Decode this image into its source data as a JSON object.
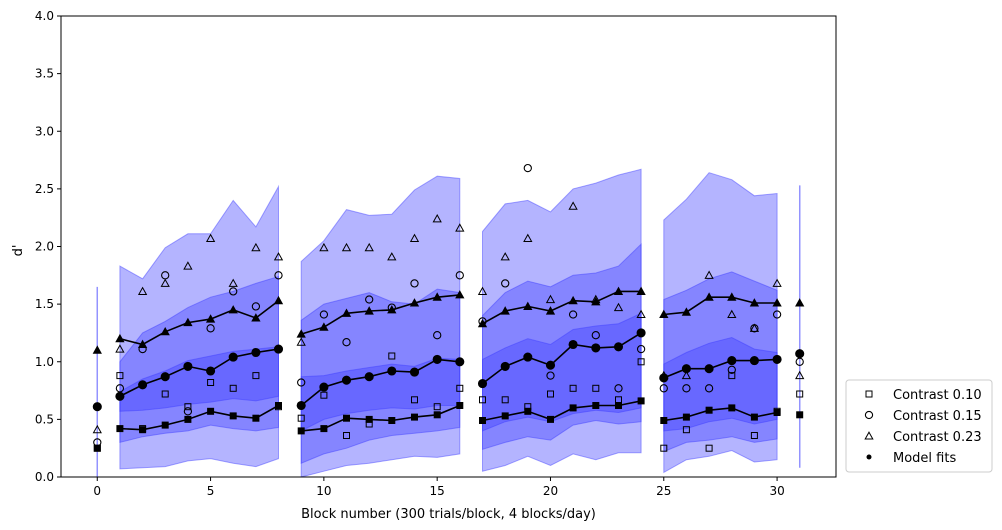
{
  "chart_data": {
    "type": "scatter",
    "xlabel": "Block number (300 trials/block, 4 blocks/day)",
    "ylabel": "d'",
    "xlim": [
      -1.6,
      32.6
    ],
    "ylim": [
      0.0,
      4.0
    ],
    "xticks": [
      0,
      5,
      10,
      15,
      20,
      25,
      30
    ],
    "yticks": [
      0.0,
      0.5,
      1.0,
      1.5,
      2.0,
      2.5,
      3.0,
      3.5,
      4.0
    ],
    "ytick_labels": [
      "0.0",
      "0.5",
      "1.0",
      "1.5",
      "2.0",
      "2.5",
      "3.0",
      "3.5",
      "4.0"
    ],
    "grid": false,
    "legend_placement": "right, outside, bottom",
    "colors": {
      "band": "#3b3bff",
      "marks": "#000000"
    },
    "legend": [
      "Contrast 0.10",
      "Contrast 0.15",
      "Contrast 0.23",
      "Model fits"
    ],
    "segments": [
      {
        "x": [
          1,
          2,
          3,
          4,
          5,
          6,
          7,
          8
        ],
        "fits": {
          "c010": [
            0.42,
            0.41,
            0.45,
            0.5,
            0.57,
            0.53,
            0.51,
            0.62
          ],
          "c015": [
            0.7,
            0.8,
            0.87,
            0.96,
            0.92,
            1.04,
            1.08,
            1.11
          ],
          "c023": [
            1.2,
            1.15,
            1.26,
            1.34,
            1.37,
            1.45,
            1.38,
            1.53
          ]
        },
        "bands": {
          "outer": {
            "low": [
              0.07,
              0.08,
              0.09,
              0.14,
              0.16,
              0.12,
              0.09,
              0.16
            ],
            "high": [
              1.83,
              1.72,
              1.99,
              2.11,
              2.11,
              2.4,
              2.17,
              2.52
            ]
          },
          "middle": {
            "low": [
              0.3,
              0.35,
              0.38,
              0.4,
              0.45,
              0.42,
              0.4,
              0.43
            ],
            "high": [
              1.0,
              1.25,
              1.35,
              1.47,
              1.56,
              1.61,
              1.68,
              1.74
            ]
          },
          "inner": {
            "low": [
              0.57,
              0.58,
              0.6,
              0.63,
              0.65,
              0.68,
              0.66,
              0.7
            ],
            "high": [
              0.74,
              0.85,
              0.92,
              1.01,
              1.05,
              1.09,
              1.11,
              1.13
            ]
          }
        },
        "obs": {
          "c010": [
            0.88,
            0.42,
            0.72,
            0.61,
            0.82,
            0.77,
            0.88,
            0.61
          ],
          "c015": [
            0.77,
            1.11,
            1.75,
            0.57,
            1.29,
            1.61,
            1.48,
            1.75
          ],
          "c023": [
            1.11,
            1.61,
            1.68,
            1.83,
            2.07,
            1.68,
            1.99,
            1.91
          ]
        }
      },
      {
        "x": [
          9,
          10,
          11,
          12,
          13,
          14,
          15,
          16
        ],
        "fits": {
          "c010": [
            0.4,
            0.42,
            0.51,
            0.5,
            0.49,
            0.52,
            0.54,
            0.62
          ],
          "c015": [
            0.62,
            0.78,
            0.84,
            0.87,
            0.92,
            0.91,
            1.02,
            1.0
          ],
          "c023": [
            1.24,
            1.3,
            1.42,
            1.44,
            1.45,
            1.51,
            1.56,
            1.58
          ]
        },
        "bands": {
          "outer": {
            "low": [
              -0.05,
              0.05,
              0.1,
              0.12,
              0.15,
              0.18,
              0.17,
              0.2
            ],
            "high": [
              1.87,
              2.05,
              2.32,
              2.27,
              2.28,
              2.49,
              2.61,
              2.59
            ]
          },
          "middle": {
            "low": [
              0.12,
              0.2,
              0.25,
              0.32,
              0.36,
              0.38,
              0.4,
              0.43
            ],
            "high": [
              1.36,
              1.5,
              1.55,
              1.6,
              1.52,
              1.5,
              1.63,
              1.6
            ]
          },
          "inner": {
            "low": [
              0.4,
              0.5,
              0.55,
              0.58,
              0.6,
              0.59,
              0.62,
              0.62
            ],
            "high": [
              0.87,
              0.88,
              0.92,
              0.95,
              0.98,
              0.96,
              1.03,
              1.02
            ]
          }
        },
        "obs": {
          "c010": [
            0.51,
            0.71,
            0.36,
            0.46,
            1.05,
            0.67,
            0.61,
            0.77
          ],
          "c015": [
            0.82,
            1.41,
            1.17,
            1.54,
            1.47,
            1.68,
            1.23,
            1.75
          ],
          "c023": [
            1.17,
            1.99,
            1.99,
            1.99,
            1.91,
            2.07,
            2.24,
            2.16
          ]
        }
      },
      {
        "x": [
          17,
          18,
          19,
          20,
          21,
          22,
          23,
          24
        ],
        "fits": {
          "c010": [
            0.49,
            0.53,
            0.57,
            0.5,
            0.6,
            0.62,
            0.62,
            0.66
          ],
          "c015": [
            0.81,
            0.96,
            1.04,
            0.97,
            1.15,
            1.12,
            1.13,
            1.25
          ],
          "c023": [
            1.33,
            1.44,
            1.48,
            1.44,
            1.53,
            1.52,
            1.61,
            1.61
          ]
        },
        "bands": {
          "outer": {
            "low": [
              0.05,
              0.1,
              0.18,
              0.1,
              0.2,
              0.15,
              0.21,
              0.21
            ],
            "high": [
              2.13,
              2.37,
              2.4,
              2.3,
              2.5,
              2.55,
              2.62,
              2.67
            ]
          },
          "middle": {
            "low": [
              0.24,
              0.3,
              0.35,
              0.32,
              0.45,
              0.49,
              0.46,
              0.48
            ],
            "high": [
              1.4,
              1.6,
              1.7,
              1.65,
              1.75,
              1.77,
              1.83,
              2.02
            ]
          },
          "inner": {
            "low": [
              0.4,
              0.48,
              0.52,
              0.48,
              0.55,
              0.58,
              0.56,
              0.6
            ],
            "high": [
              1.02,
              1.12,
              1.2,
              1.15,
              1.28,
              1.31,
              1.33,
              1.42
            ]
          }
        },
        "obs": {
          "c010": [
            0.67,
            0.67,
            0.61,
            0.72,
            0.77,
            0.77,
            0.67,
            1.0
          ],
          "c015": [
            1.35,
            1.68,
            2.68,
            0.88,
            1.41,
            1.23,
            0.77,
            1.11
          ],
          "c023": [
            1.61,
            1.91,
            2.07,
            1.54,
            2.35,
            1.54,
            1.47,
            1.41
          ]
        }
      },
      {
        "x": [
          25,
          26,
          27,
          28,
          29,
          30
        ],
        "fits": {
          "c010": [
            0.49,
            0.52,
            0.58,
            0.6,
            0.52,
            0.56
          ],
          "c015": [
            0.86,
            0.94,
            0.94,
            1.01,
            1.01,
            1.02
          ],
          "c023": [
            1.41,
            1.43,
            1.56,
            1.56,
            1.51,
            1.51
          ]
        },
        "bands": {
          "outer": {
            "low": [
              0.04,
              0.15,
              0.18,
              0.23,
              0.13,
              0.15
            ],
            "high": [
              2.23,
              2.41,
              2.64,
              2.58,
              2.44,
              2.46
            ]
          },
          "middle": {
            "low": [
              0.22,
              0.3,
              0.32,
              0.35,
              0.3,
              0.33
            ],
            "high": [
              1.54,
              1.62,
              1.72,
              1.78,
              1.7,
              1.62
            ]
          },
          "inner": {
            "low": [
              0.4,
              0.42,
              0.48,
              0.51,
              0.46,
              0.5
            ],
            "high": [
              0.98,
              1.08,
              1.16,
              1.21,
              1.11,
              1.08
            ]
          }
        },
        "obs": {
          "c010": [
            0.25,
            0.41,
            0.25,
            0.88,
            0.36,
            0.57
          ],
          "c015": [
            0.77,
            0.77,
            0.77,
            0.93,
            1.29,
            1.41
          ],
          "c023": [
            0.88,
            0.88,
            1.75,
            1.41,
            1.29,
            1.68
          ]
        }
      }
    ],
    "singles": [
      {
        "x": 0,
        "fits": {
          "c010": 0.25,
          "c015": 0.61,
          "c023": 1.1
        },
        "obs": {
          "c010": 0.25,
          "c015": 0.3,
          "c023": 0.41
        },
        "range": [
          0.0,
          1.65
        ]
      },
      {
        "x": 31,
        "fits": {
          "c010": 0.54,
          "c015": 1.07,
          "c023": 1.51
        },
        "obs": {
          "c010": 0.72,
          "c015": 1.0,
          "c023": 0.88
        },
        "range": [
          0.08,
          2.53
        ]
      }
    ]
  }
}
